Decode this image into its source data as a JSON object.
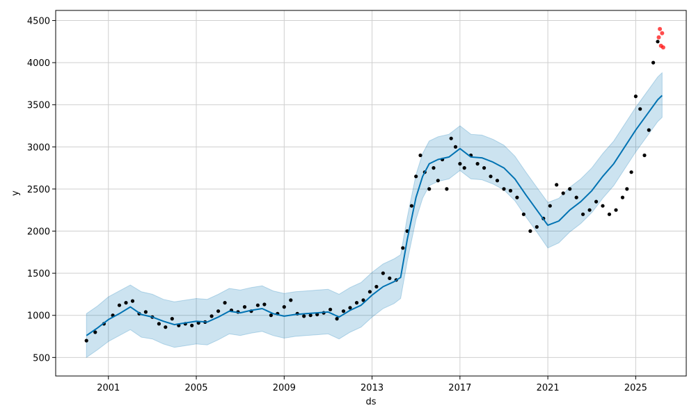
{
  "chart_data": {
    "type": "line",
    "xlabel": "ds",
    "ylabel": "y",
    "xlim": [
      1998.6,
      2027.3
    ],
    "ylim": [
      280,
      4620
    ],
    "x_ticks": [
      2001,
      2005,
      2009,
      2013,
      2017,
      2021,
      2025
    ],
    "x_tick_labels": [
      "2001",
      "2005",
      "2009",
      "2013",
      "2017",
      "2021",
      "2025"
    ],
    "y_ticks": [
      500,
      1000,
      1500,
      2000,
      2500,
      3000,
      3500,
      4000,
      4500
    ],
    "y_tick_labels": [
      "500",
      "1000",
      "1500",
      "2000",
      "2500",
      "3000",
      "3500",
      "4000",
      "4500"
    ],
    "grid": true,
    "colors": {
      "forecast_line": "#0072B2",
      "uncertainty_band": "#0072B2",
      "observed_points": "#000000",
      "outlier_points": "#ff0000"
    },
    "series": [
      {
        "kind": "forecast",
        "x": [
          2000.0,
          2000.5,
          2001.0,
          2001.5,
          2002.0,
          2002.5,
          2003.0,
          2003.5,
          2004.0,
          2004.5,
          2005.0,
          2005.5,
          2006.0,
          2006.5,
          2007.0,
          2007.5,
          2008.0,
          2008.5,
          2009.0,
          2009.5,
          2010.0,
          2010.5,
          2011.0,
          2011.5,
          2012.0,
          2012.5,
          2013.0,
          2013.5,
          2014.0,
          2014.3,
          2014.6,
          2015.0,
          2015.3,
          2015.6,
          2016.0,
          2016.5,
          2017.0,
          2017.5,
          2018.0,
          2018.5,
          2019.0,
          2019.5,
          2020.0,
          2020.5,
          2021.0,
          2021.5,
          2022.0,
          2022.5,
          2023.0,
          2023.5,
          2024.0,
          2024.5,
          2025.0,
          2025.5,
          2026.0,
          2026.2
        ],
        "y": [
          760,
          850,
          950,
          1020,
          1100,
          1010,
          980,
          930,
          890,
          910,
          930,
          920,
          980,
          1050,
          1030,
          1060,
          1080,
          1020,
          990,
          1010,
          1020,
          1030,
          1040,
          980,
          1060,
          1120,
          1240,
          1340,
          1400,
          1450,
          1900,
          2400,
          2650,
          2800,
          2850,
          2880,
          2980,
          2880,
          2870,
          2820,
          2750,
          2620,
          2430,
          2250,
          2070,
          2120,
          2250,
          2350,
          2480,
          2650,
          2800,
          3000,
          3200,
          3380,
          3560,
          3610
        ]
      },
      {
        "kind": "uncertainty_band",
        "x": [
          2000.0,
          2000.5,
          2001.0,
          2001.5,
          2002.0,
          2002.5,
          2003.0,
          2003.5,
          2004.0,
          2004.5,
          2005.0,
          2005.5,
          2006.0,
          2006.5,
          2007.0,
          2007.5,
          2008.0,
          2008.5,
          2009.0,
          2009.5,
          2010.0,
          2010.5,
          2011.0,
          2011.5,
          2012.0,
          2012.5,
          2013.0,
          2013.5,
          2014.0,
          2014.3,
          2014.6,
          2015.0,
          2015.3,
          2015.6,
          2016.0,
          2016.5,
          2017.0,
          2017.5,
          2018.0,
          2018.5,
          2019.0,
          2019.5,
          2020.0,
          2020.5,
          2021.0,
          2021.5,
          2022.0,
          2022.5,
          2023.0,
          2023.5,
          2024.0,
          2024.5,
          2025.0,
          2025.5,
          2026.0,
          2026.2
        ],
        "lower": [
          500,
          590,
          690,
          760,
          830,
          740,
          720,
          660,
          620,
          640,
          660,
          650,
          710,
          780,
          760,
          790,
          810,
          760,
          730,
          750,
          760,
          770,
          780,
          720,
          800,
          860,
          980,
          1080,
          1140,
          1200,
          1640,
          2140,
          2390,
          2540,
          2590,
          2620,
          2720,
          2620,
          2610,
          2560,
          2490,
          2360,
          2170,
          1990,
          1800,
          1860,
          1990,
          2090,
          2220,
          2390,
          2540,
          2740,
          2940,
          3120,
          3300,
          3350
        ],
        "upper": [
          1020,
          1110,
          1220,
          1290,
          1360,
          1280,
          1250,
          1190,
          1160,
          1180,
          1200,
          1190,
          1250,
          1320,
          1300,
          1330,
          1350,
          1290,
          1260,
          1280,
          1290,
          1300,
          1310,
          1250,
          1330,
          1390,
          1510,
          1610,
          1670,
          1720,
          2160,
          2670,
          2920,
          3070,
          3120,
          3150,
          3250,
          3150,
          3140,
          3090,
          3020,
          2890,
          2700,
          2520,
          2340,
          2390,
          2520,
          2620,
          2750,
          2920,
          3070,
          3270,
          3470,
          3650,
          3830,
          3880
        ]
      },
      {
        "kind": "observed",
        "x": [
          2000.0,
          2000.4,
          2000.8,
          2001.2,
          2001.5,
          2001.8,
          2002.1,
          2002.4,
          2002.7,
          2003.0,
          2003.3,
          2003.6,
          2003.9,
          2004.2,
          2004.5,
          2004.8,
          2005.1,
          2005.4,
          2005.7,
          2006.0,
          2006.3,
          2006.6,
          2006.9,
          2007.2,
          2007.5,
          2007.8,
          2008.1,
          2008.4,
          2008.7,
          2009.0,
          2009.3,
          2009.6,
          2009.9,
          2010.2,
          2010.5,
          2010.8,
          2011.1,
          2011.4,
          2011.7,
          2012.0,
          2012.3,
          2012.6,
          2012.9,
          2013.2,
          2013.5,
          2013.8,
          2014.1,
          2014.4,
          2014.6,
          2014.8,
          2015.0,
          2015.2,
          2015.4,
          2015.6,
          2015.8,
          2016.0,
          2016.2,
          2016.4,
          2016.6,
          2016.8,
          2017.0,
          2017.2,
          2017.5,
          2017.8,
          2018.1,
          2018.4,
          2018.7,
          2019.0,
          2019.3,
          2019.6,
          2019.9,
          2020.2,
          2020.5,
          2020.8,
          2021.1,
          2021.4,
          2021.7,
          2022.0,
          2022.3,
          2022.6,
          2022.9,
          2023.2,
          2023.5,
          2023.8,
          2024.1,
          2024.4,
          2024.6,
          2024.8,
          2025.0,
          2025.2,
          2025.4,
          2025.6,
          2025.8,
          2026.0
        ],
        "y": [
          700,
          800,
          900,
          1000,
          1120,
          1150,
          1170,
          1020,
          1040,
          980,
          900,
          860,
          960,
          880,
          900,
          880,
          910,
          920,
          990,
          1050,
          1150,
          1060,
          1040,
          1100,
          1050,
          1120,
          1130,
          1000,
          1020,
          1100,
          1180,
          1020,
          990,
          1000,
          1010,
          1030,
          1070,
          960,
          1050,
          1090,
          1150,
          1180,
          1280,
          1340,
          1500,
          1440,
          1420,
          1800,
          2000,
          2300,
          2650,
          2900,
          2700,
          2500,
          2750,
          2600,
          2850,
          2500,
          3100,
          3000,
          2800,
          2750,
          2900,
          2800,
          2750,
          2650,
          2600,
          2500,
          2480,
          2400,
          2200,
          2000,
          2050,
          2150,
          2300,
          2550,
          2450,
          2500,
          2400,
          2200,
          2250,
          2350,
          2300,
          2200,
          2250,
          2400,
          2500,
          2700,
          3600,
          3450,
          2900,
          3200,
          4000,
          4250
        ]
      },
      {
        "kind": "outliers",
        "x": [
          2026.05,
          2026.1,
          2026.15,
          2026.2,
          2026.25
        ],
        "y": [
          4300,
          4400,
          4200,
          4350,
          4180
        ]
      }
    ]
  }
}
